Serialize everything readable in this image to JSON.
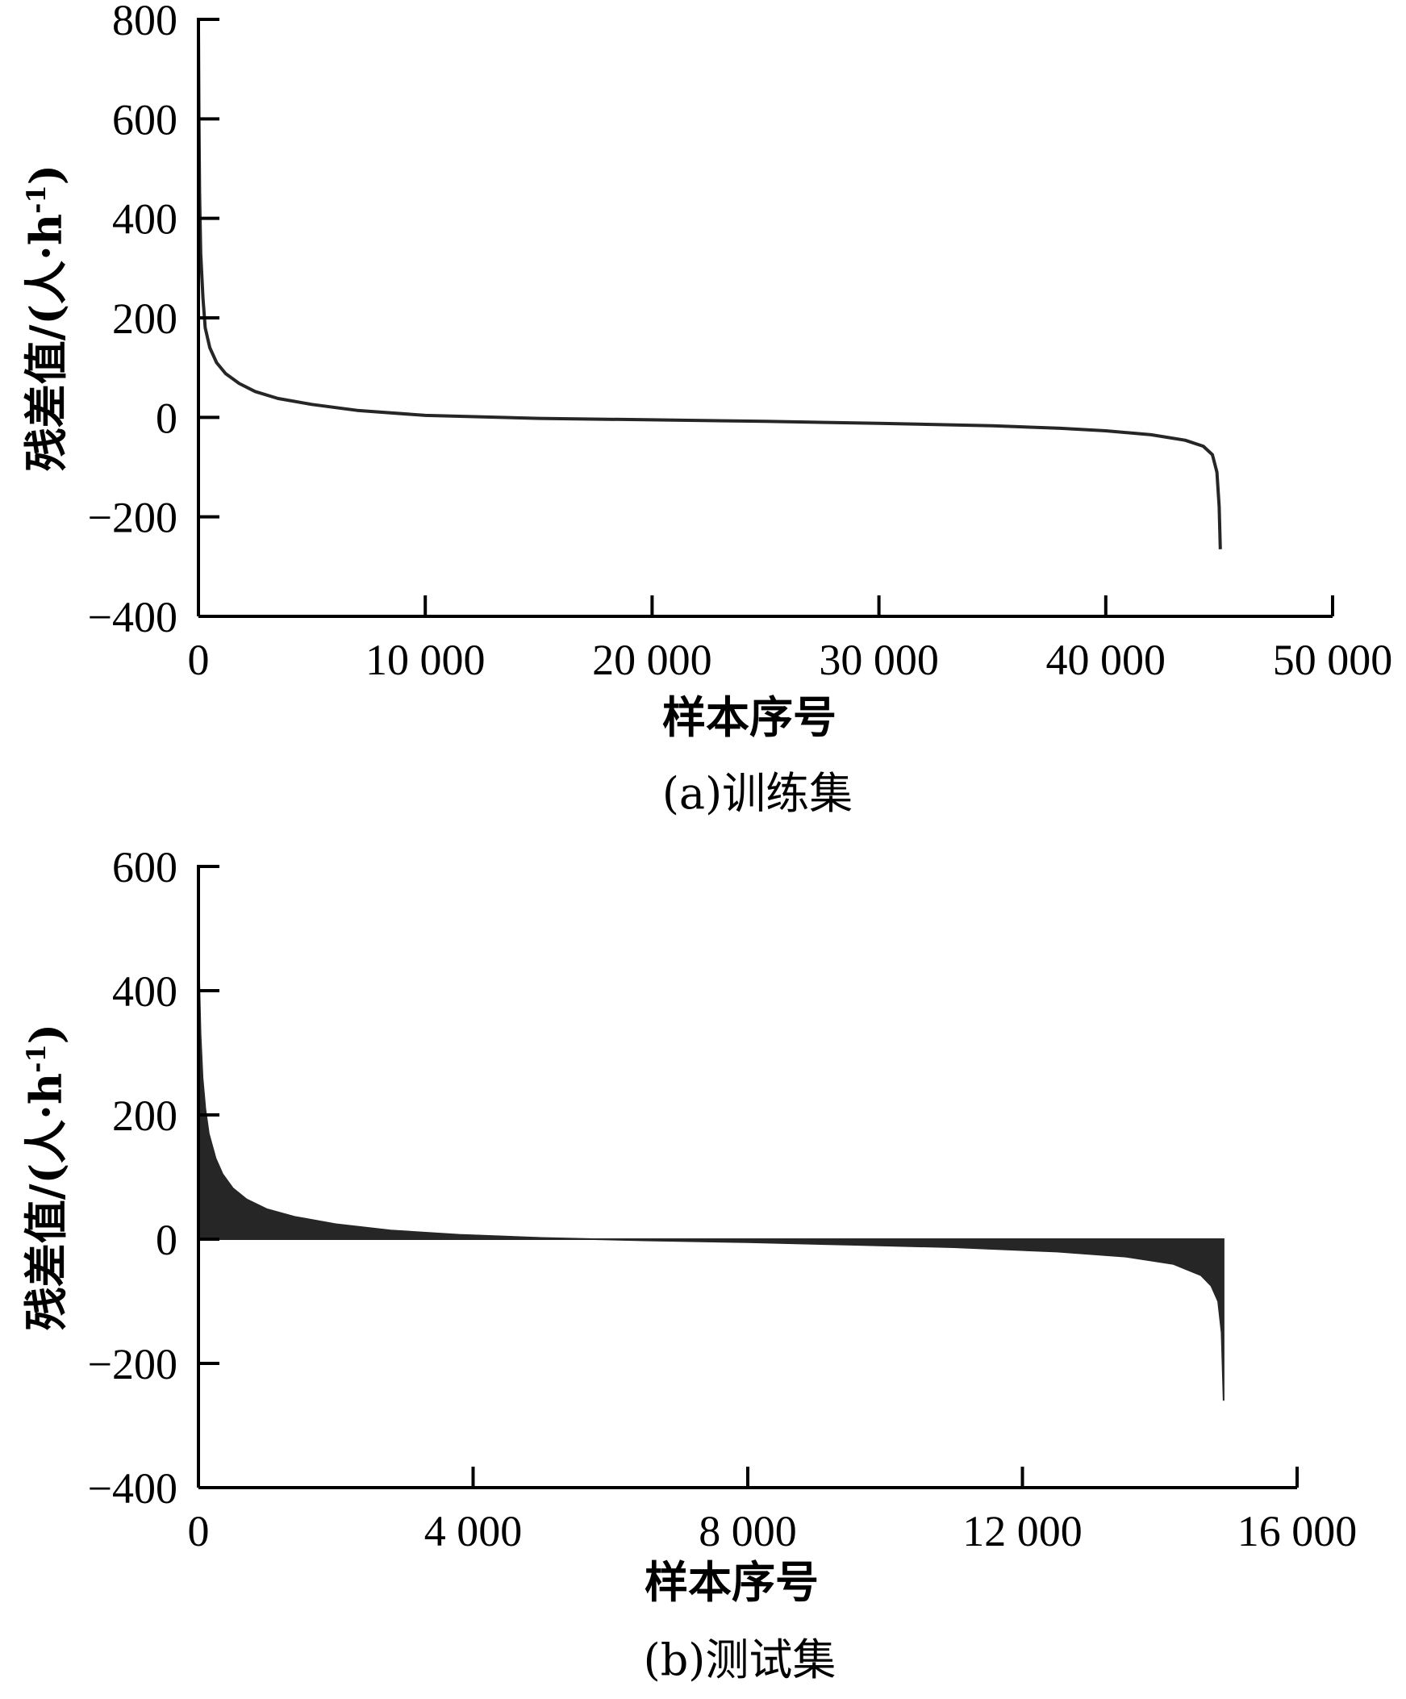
{
  "chart_data": [
    {
      "type": "line",
      "caption": "(a)训练集",
      "xlabel": "样本序号",
      "ylabel_main": "残差值/(人·h",
      "ylabel_sup": "-1",
      "ylabel_tail": ")",
      "xlim": [
        0,
        50000
      ],
      "ylim": [
        -400,
        800
      ],
      "xticks": [
        0,
        10000,
        20000,
        30000,
        40000,
        50000
      ],
      "xtick_labels": [
        "0",
        "10 000",
        "20 000",
        "30 000",
        "40 000",
        "50 000"
      ],
      "yticks": [
        -400,
        -200,
        0,
        200,
        400,
        600,
        800
      ],
      "ytick_labels": [
        "−400",
        "−200",
        "0",
        "200",
        "400",
        "600",
        "800"
      ],
      "grid": false,
      "series": [
        {
          "x": [
            0,
            20,
            50,
            100,
            200,
            300,
            500,
            800,
            1200,
            1800,
            2500,
            3500,
            5000,
            7000,
            10000,
            15000,
            20000,
            25000,
            30000,
            35000,
            38000,
            40000,
            42000,
            43500,
            44300,
            44700,
            44900,
            45000,
            45050
          ],
          "y": [
            780,
            600,
            450,
            330,
            240,
            180,
            140,
            110,
            88,
            68,
            52,
            38,
            26,
            14,
            4,
            -2,
            -5,
            -8,
            -12,
            -17,
            -22,
            -27,
            -35,
            -46,
            -58,
            -75,
            -110,
            -180,
            -265
          ]
        }
      ]
    },
    {
      "type": "area",
      "caption": "(b)测试集",
      "xlabel": "样本序号",
      "ylabel_main": "残差值/(人·h",
      "ylabel_sup": "-1",
      "ylabel_tail": ")",
      "xlim": [
        0,
        16000
      ],
      "ylim": [
        -400,
        600
      ],
      "xticks": [
        0,
        4000,
        8000,
        12000,
        16000
      ],
      "xtick_labels": [
        "0",
        "4 000",
        "8 000",
        "12 000",
        "16 000"
      ],
      "yticks": [
        -400,
        -200,
        0,
        200,
        400,
        600
      ],
      "ytick_labels": [
        "−400",
        "−200",
        "0",
        "200",
        "400",
        "600"
      ],
      "grid": false,
      "series": [
        {
          "x": [
            0,
            10,
            30,
            60,
            100,
            150,
            250,
            350,
            500,
            700,
            1000,
            1400,
            2000,
            2800,
            3800,
            5000,
            6500,
            8000,
            9500,
            11000,
            12500,
            13500,
            14200,
            14600,
            14750,
            14850,
            14900,
            14930
          ],
          "y": [
            580,
            420,
            330,
            260,
            210,
            170,
            130,
            105,
            82,
            64,
            48,
            36,
            24,
            14,
            7,
            2,
            -2,
            -5,
            -9,
            -13,
            -20,
            -28,
            -40,
            -58,
            -75,
            -100,
            -150,
            -260
          ]
        }
      ]
    }
  ]
}
